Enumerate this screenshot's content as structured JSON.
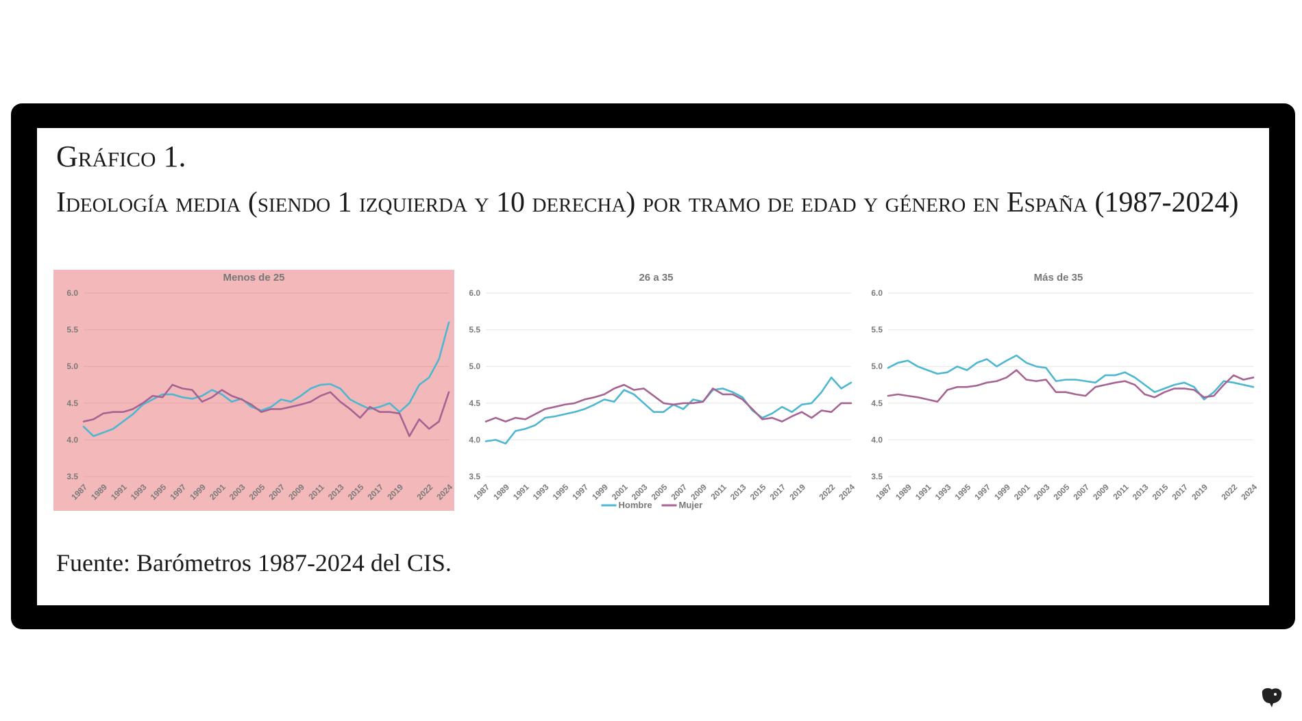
{
  "figure": {
    "title": "Gráfico 1.",
    "subtitle": "Ideología media (siendo 1 izquierda y 10 derecha) por tramo de edad y género en España (1987-2024)",
    "source": "Fuente: Barómetros 1987-2024 del CIS."
  },
  "colors": {
    "hombre": "#4db6d0",
    "mujer": "#a66292",
    "highlight_bg": "#f2b8ba",
    "grid": "#e6e6e6",
    "tick": "#7a7a7a"
  },
  "legend": {
    "hombre": "Hombre",
    "mujer": "Mujer"
  },
  "chart_data": [
    {
      "type": "line",
      "title": "Menos de 25",
      "highlighted": true,
      "ylim": [
        3.5,
        6.0
      ],
      "yticks": [
        "3.5",
        "4.0",
        "4.5",
        "5.0",
        "5.5",
        "6.0"
      ],
      "x": [
        1987,
        1988,
        1989,
        1990,
        1991,
        1992,
        1993,
        1994,
        1995,
        1996,
        1997,
        1998,
        1999,
        2000,
        2001,
        2002,
        2003,
        2004,
        2005,
        2006,
        2007,
        2008,
        2009,
        2010,
        2011,
        2012,
        2013,
        2014,
        2015,
        2016,
        2017,
        2018,
        2019,
        2020,
        2021,
        2022,
        2023,
        2024
      ],
      "xtick_labels": [
        "1987",
        "1989",
        "1991",
        "1993",
        "1995",
        "1997",
        "1999",
        "2001",
        "2003",
        "2005",
        "2007",
        "2009",
        "2011",
        "2013",
        "2015",
        "2017",
        "2019",
        "2022",
        "2024"
      ],
      "grid": true,
      "series": [
        {
          "name": "Hombre",
          "values": [
            4.18,
            4.05,
            4.1,
            4.15,
            4.25,
            4.35,
            4.48,
            4.55,
            4.62,
            4.62,
            4.58,
            4.56,
            4.6,
            4.68,
            4.62,
            4.52,
            4.56,
            4.45,
            4.4,
            4.45,
            4.55,
            4.52,
            4.6,
            4.7,
            4.75,
            4.76,
            4.7,
            4.55,
            4.48,
            4.42,
            4.45,
            4.5,
            4.38,
            4.5,
            4.75,
            4.85,
            5.1,
            5.6
          ]
        },
        {
          "name": "Mujer",
          "values": [
            4.25,
            4.28,
            4.36,
            4.38,
            4.38,
            4.42,
            4.5,
            4.6,
            4.58,
            4.75,
            4.7,
            4.68,
            4.52,
            4.58,
            4.68,
            4.6,
            4.55,
            4.48,
            4.38,
            4.42,
            4.42,
            4.45,
            4.48,
            4.52,
            4.6,
            4.65,
            4.52,
            4.42,
            4.3,
            4.45,
            4.38,
            4.38,
            4.36,
            4.05,
            4.28,
            4.15,
            4.25,
            4.65
          ]
        }
      ]
    },
    {
      "type": "line",
      "title": "26 a 35",
      "highlighted": false,
      "ylim": [
        3.5,
        6.0
      ],
      "yticks": [
        "3.5",
        "4.0",
        "4.5",
        "5.0",
        "5.5",
        "6.0"
      ],
      "x": [
        1987,
        1988,
        1989,
        1990,
        1991,
        1992,
        1993,
        1994,
        1995,
        1996,
        1997,
        1998,
        1999,
        2000,
        2001,
        2002,
        2003,
        2004,
        2005,
        2006,
        2007,
        2008,
        2009,
        2010,
        2011,
        2012,
        2013,
        2014,
        2015,
        2016,
        2017,
        2018,
        2019,
        2020,
        2021,
        2022,
        2023,
        2024
      ],
      "xtick_labels": [
        "1987",
        "1989",
        "1991",
        "1993",
        "1995",
        "1997",
        "1999",
        "2001",
        "2003",
        "2005",
        "2007",
        "2009",
        "2011",
        "2013",
        "2015",
        "2017",
        "2019",
        "2022",
        "2024"
      ],
      "grid": true,
      "legend": "bottom",
      "series": [
        {
          "name": "Hombre",
          "values": [
            3.98,
            4.0,
            3.95,
            4.12,
            4.15,
            4.2,
            4.3,
            4.32,
            4.35,
            4.38,
            4.42,
            4.48,
            4.55,
            4.52,
            4.68,
            4.62,
            4.5,
            4.38,
            4.38,
            4.48,
            4.42,
            4.55,
            4.52,
            4.68,
            4.7,
            4.65,
            4.58,
            4.4,
            4.3,
            4.36,
            4.45,
            4.38,
            4.48,
            4.5,
            4.65,
            4.85,
            4.7,
            4.78
          ]
        },
        {
          "name": "Mujer",
          "values": [
            4.25,
            4.3,
            4.25,
            4.3,
            4.28,
            4.35,
            4.42,
            4.45,
            4.48,
            4.5,
            4.55,
            4.58,
            4.62,
            4.7,
            4.75,
            4.68,
            4.7,
            4.6,
            4.5,
            4.48,
            4.5,
            4.5,
            4.52,
            4.7,
            4.62,
            4.62,
            4.55,
            4.42,
            4.28,
            4.3,
            4.25,
            4.32,
            4.38,
            4.3,
            4.4,
            4.38,
            4.5,
            4.5
          ]
        }
      ]
    },
    {
      "type": "line",
      "title": "Más de 35",
      "highlighted": false,
      "ylim": [
        3.5,
        6.0
      ],
      "yticks": [
        "3.5",
        "4.0",
        "4.5",
        "5.0",
        "5.5",
        "6.0"
      ],
      "x": [
        1987,
        1988,
        1989,
        1990,
        1991,
        1992,
        1993,
        1994,
        1995,
        1996,
        1997,
        1998,
        1999,
        2000,
        2001,
        2002,
        2003,
        2004,
        2005,
        2006,
        2007,
        2008,
        2009,
        2010,
        2011,
        2012,
        2013,
        2014,
        2015,
        2016,
        2017,
        2018,
        2019,
        2020,
        2021,
        2022,
        2023,
        2024
      ],
      "xtick_labels": [
        "1987",
        "1989",
        "1991",
        "1993",
        "1995",
        "1997",
        "1999",
        "2001",
        "2003",
        "2005",
        "2007",
        "2009",
        "2011",
        "2013",
        "2015",
        "2017",
        "2019",
        "2022",
        "2024"
      ],
      "grid": true,
      "series": [
        {
          "name": "Hombre",
          "values": [
            4.98,
            5.05,
            5.08,
            5.0,
            4.95,
            4.9,
            4.92,
            5.0,
            4.95,
            5.05,
            5.1,
            5.0,
            5.08,
            5.15,
            5.05,
            5.0,
            4.98,
            4.8,
            4.82,
            4.82,
            4.8,
            4.78,
            4.88,
            4.88,
            4.92,
            4.85,
            4.75,
            4.65,
            4.7,
            4.75,
            4.78,
            4.72,
            4.55,
            4.65,
            4.8,
            4.78,
            4.75,
            4.72
          ]
        },
        {
          "name": "Mujer",
          "values": [
            4.6,
            4.62,
            4.6,
            4.58,
            4.55,
            4.52,
            4.68,
            4.72,
            4.72,
            4.74,
            4.78,
            4.8,
            4.85,
            4.95,
            4.82,
            4.8,
            4.82,
            4.65,
            4.65,
            4.62,
            4.6,
            4.72,
            4.75,
            4.78,
            4.8,
            4.75,
            4.62,
            4.58,
            4.65,
            4.7,
            4.7,
            4.68,
            4.58,
            4.6,
            4.75,
            4.88,
            4.82,
            4.85
          ]
        }
      ]
    }
  ]
}
